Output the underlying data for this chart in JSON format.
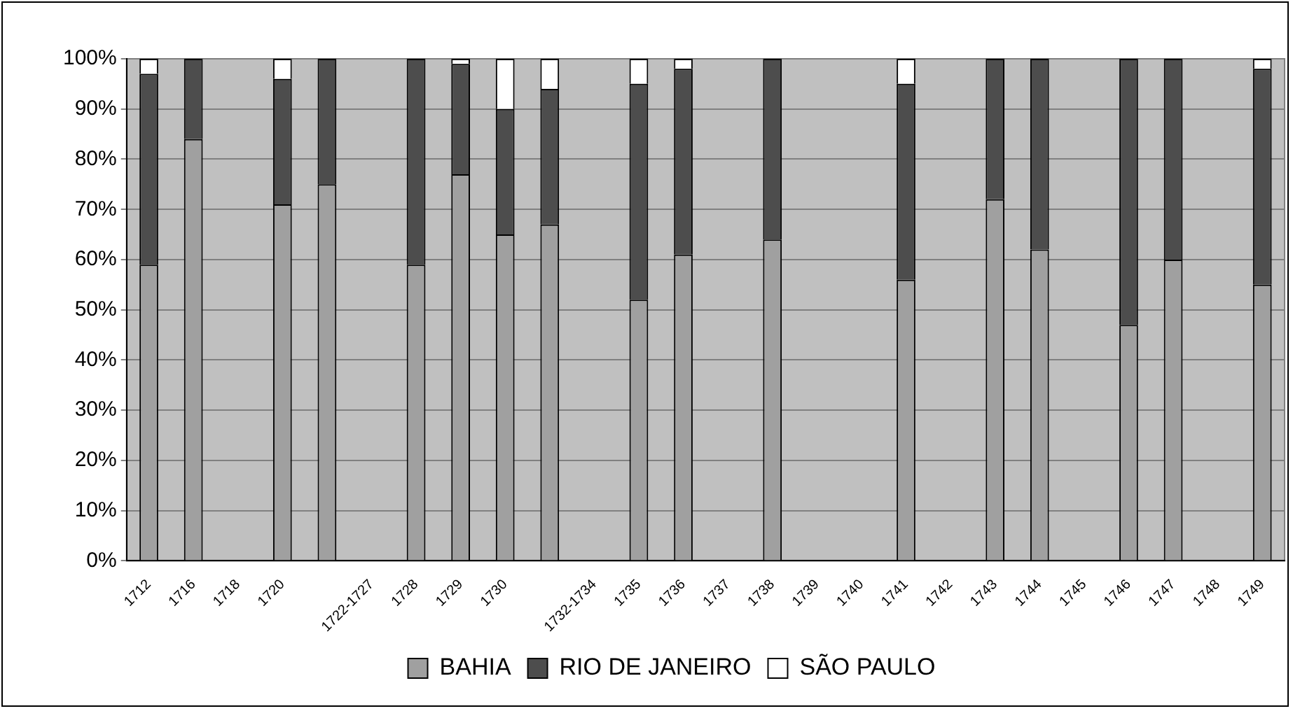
{
  "chart_data": {
    "type": "bar",
    "stacked": true,
    "categories": [
      "1712",
      "1716",
      "1718",
      "1720",
      null,
      "1722-1727",
      "1728",
      "1729",
      "1730",
      null,
      "1732-1734",
      "1735",
      "1736",
      "1737",
      "1738",
      "1739",
      "1740",
      "1741",
      "1742",
      "1743",
      "1744",
      "1745",
      "1746",
      "1747",
      "1748",
      "1749"
    ],
    "series": [
      {
        "name": "BAHIA",
        "color": "#a0a0a0",
        "values": [
          59,
          84,
          null,
          71,
          75,
          null,
          59,
          77,
          65,
          67,
          null,
          52,
          61,
          null,
          64,
          null,
          null,
          56,
          null,
          72,
          62,
          null,
          47,
          60,
          null,
          55
        ]
      },
      {
        "name": "RIO DE JANEIRO",
        "color": "#4d4d4d",
        "values": [
          38,
          16,
          null,
          25,
          25,
          null,
          41,
          22,
          25,
          27,
          null,
          43,
          37,
          null,
          36,
          null,
          null,
          39,
          null,
          28,
          38,
          null,
          53,
          40,
          null,
          43
        ]
      },
      {
        "name": "SÃO PAULO",
        "color": "#ffffff",
        "values": [
          3,
          null,
          null,
          4,
          null,
          null,
          null,
          1,
          10,
          6,
          null,
          5,
          2,
          null,
          null,
          null,
          null,
          5,
          null,
          null,
          null,
          null,
          null,
          null,
          null,
          2
        ]
      }
    ],
    "ylim": [
      0,
      100
    ],
    "yticks": [
      {
        "value": 0,
        "label": "0%"
      },
      {
        "value": 10,
        "label": "10%"
      },
      {
        "value": 20,
        "label": "20%"
      },
      {
        "value": 30,
        "label": "30%"
      },
      {
        "value": 40,
        "label": "40%"
      },
      {
        "value": 50,
        "label": "50%"
      },
      {
        "value": 60,
        "label": "60%"
      },
      {
        "value": 70,
        "label": "70%"
      },
      {
        "value": 80,
        "label": "80%"
      },
      {
        "value": 90,
        "label": "90%"
      },
      {
        "value": 100,
        "label": "100%"
      }
    ],
    "grid": "y",
    "legend": "bottom"
  }
}
